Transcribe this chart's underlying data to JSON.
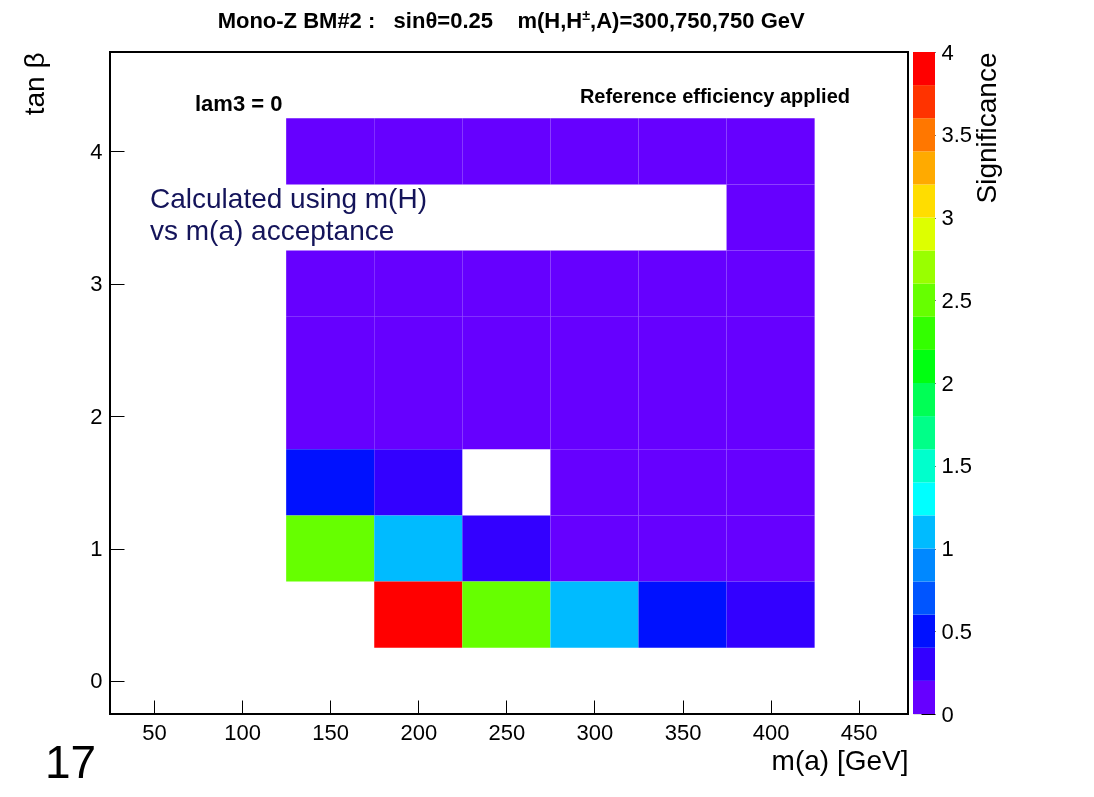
{
  "chart_data": {
    "type": "heatmap",
    "title": "Mono-Z BM#2 :   sinθ=0.25    m(H,H$^{±}$,A)=300,750,750 GeV",
    "xlabel": "m(a) [GeV]",
    "ylabel": "tan β",
    "clabel": "Significance",
    "x": [
      150,
      200,
      250,
      300,
      350,
      400
    ],
    "y": [
      4,
      3.5,
      3,
      2.5,
      2,
      1.5,
      1,
      0.5
    ],
    "cells": [
      [
        0.1,
        0.1,
        0.1,
        0.1,
        0.1,
        0.1
      ],
      [
        null,
        null,
        null,
        null,
        null,
        0.1
      ],
      [
        0.1,
        0.1,
        0.1,
        0.1,
        0.1,
        0.1
      ],
      [
        0.1,
        0.1,
        0.1,
        0.1,
        0.1,
        0.1
      ],
      [
        0.1,
        0.1,
        0.1,
        0.1,
        0.1,
        0.1
      ],
      [
        0.5,
        0.3,
        null,
        0.1,
        0.1,
        0.1
      ],
      [
        2.5,
        1.1,
        0.3,
        0.1,
        0.1,
        0.1
      ],
      [
        null,
        3.9,
        2.5,
        1.1,
        0.5,
        0.3
      ]
    ],
    "colors": [
      "#6600ff",
      "#3300ff",
      "#0011ff",
      "#0055ff",
      "#0088ff",
      "#00bbff",
      "#00ffff",
      "#00ffcc",
      "#00ff88",
      "#00ff55",
      "#00ff11",
      "#33ff00",
      "#66ff00",
      "#99ff00",
      "#ddff00",
      "#ffdd00",
      "#ffaa00",
      "#ff7700",
      "#ff3300",
      "#ff0000"
    ],
    "clim": [
      0,
      4
    ],
    "cticks": [
      0,
      0.5,
      1,
      1.5,
      2,
      2.5,
      3,
      3.5,
      4
    ],
    "xlim": [
      25,
      478
    ],
    "xticks": [
      50,
      100,
      150,
      200,
      250,
      300,
      350,
      400,
      450
    ],
    "ylim": [
      -0.25,
      4.75
    ],
    "yticks": [
      0,
      1,
      2,
      3,
      4
    ],
    "annotations": [
      "lam3 = 0",
      "Reference efficiency applied",
      "Calculated using m(H)\nvs m(a) acceptance",
      "17"
    ]
  }
}
